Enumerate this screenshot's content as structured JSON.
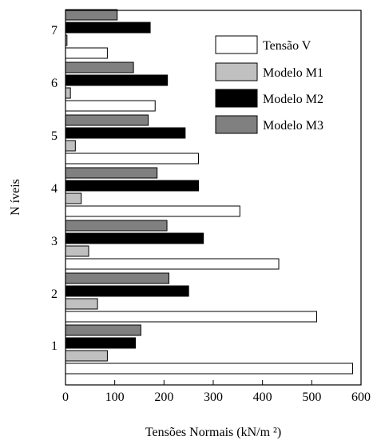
{
  "chart_data": {
    "type": "bar",
    "orientation": "horizontal",
    "categories": [
      "1",
      "2",
      "3",
      "4",
      "5",
      "6",
      "7"
    ],
    "series": [
      {
        "name": "Tensão V",
        "color": "#ffffff",
        "values": [
          583,
          510,
          433,
          354,
          270,
          182,
          85
        ]
      },
      {
        "name": "Modelo M1",
        "color": "#c0c0c0",
        "values": [
          85,
          65,
          47,
          32,
          20,
          10,
          3
        ]
      },
      {
        "name": "Modelo M2",
        "color": "#000000",
        "values": [
          142,
          250,
          280,
          270,
          243,
          207,
          172
        ]
      },
      {
        "name": "Modelo M3",
        "color": "#808080",
        "values": [
          153,
          210,
          206,
          186,
          168,
          138,
          105
        ]
      }
    ],
    "xlabel": "Tensões  Normais (kN/m ²)",
    "ylabel": "N íveis",
    "xlim": [
      0,
      600
    ],
    "xticks": [
      "0",
      "100",
      "200",
      "300",
      "400",
      "500",
      "600"
    ],
    "grid": false,
    "legend_position": "top-right"
  }
}
